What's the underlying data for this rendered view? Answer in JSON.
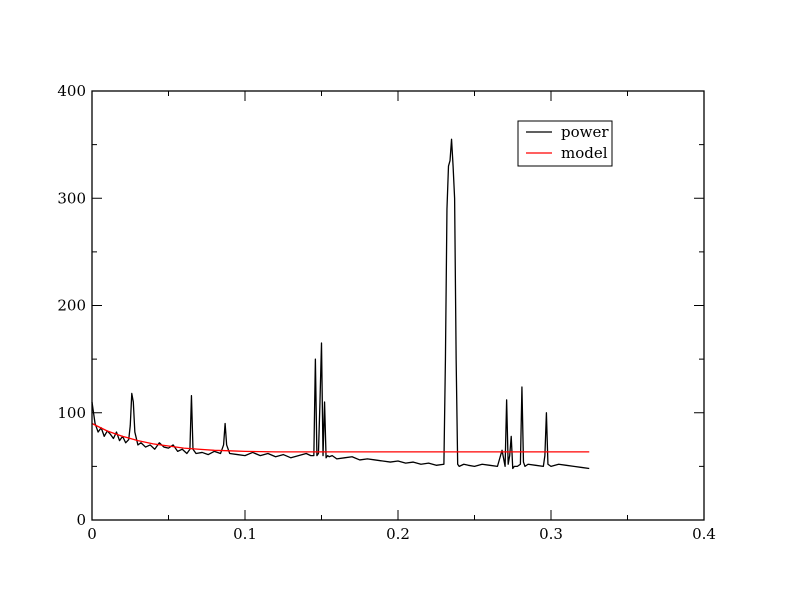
{
  "chart_data": {
    "type": "line",
    "title": "",
    "xlabel": "",
    "ylabel": "",
    "xlim": [
      0,
      0.4
    ],
    "ylim": [
      0,
      400
    ],
    "xticks": [
      0,
      0.1,
      0.2,
      0.3,
      0.4
    ],
    "xtick_labels": [
      "0",
      "0.1",
      "0.2",
      "0.3",
      "0.4"
    ],
    "yticks": [
      0,
      100,
      200,
      300,
      400
    ],
    "ytick_labels": [
      "0",
      "100",
      "200",
      "300",
      "400"
    ],
    "grid": false,
    "legend_position": "top-right",
    "series": [
      {
        "name": "power",
        "color": "#000000",
        "x": [
          0,
          0.002,
          0.004,
          0.006,
          0.008,
          0.01,
          0.012,
          0.014,
          0.016,
          0.018,
          0.02,
          0.022,
          0.024,
          0.025,
          0.026,
          0.027,
          0.028,
          0.03,
          0.032,
          0.035,
          0.038,
          0.041,
          0.044,
          0.047,
          0.05,
          0.053,
          0.056,
          0.059,
          0.062,
          0.064,
          0.065,
          0.066,
          0.068,
          0.072,
          0.076,
          0.08,
          0.084,
          0.086,
          0.087,
          0.088,
          0.09,
          0.095,
          0.1,
          0.105,
          0.11,
          0.115,
          0.12,
          0.125,
          0.13,
          0.135,
          0.14,
          0.143,
          0.145,
          0.146,
          0.147,
          0.148,
          0.149,
          0.15,
          0.151,
          0.152,
          0.153,
          0.154,
          0.155,
          0.157,
          0.16,
          0.165,
          0.17,
          0.175,
          0.18,
          0.185,
          0.19,
          0.195,
          0.2,
          0.205,
          0.21,
          0.215,
          0.22,
          0.225,
          0.23,
          0.231,
          0.232,
          0.233,
          0.234,
          0.235,
          0.236,
          0.237,
          0.238,
          0.239,
          0.24,
          0.243,
          0.246,
          0.25,
          0.255,
          0.26,
          0.265,
          0.268,
          0.27,
          0.271,
          0.272,
          0.273,
          0.274,
          0.275,
          0.276,
          0.278,
          0.28,
          0.281,
          0.282,
          0.283,
          0.285,
          0.29,
          0.295,
          0.296,
          0.297,
          0.298,
          0.3,
          0.305,
          0.31,
          0.315,
          0.32,
          0.325
        ],
        "y": [
          110,
          90,
          82,
          86,
          78,
          83,
          80,
          76,
          82,
          74,
          78,
          72,
          75,
          88,
          118,
          110,
          82,
          70,
          72,
          68,
          70,
          66,
          72,
          68,
          67,
          70,
          64,
          66,
          62,
          66,
          116,
          66,
          62,
          63,
          61,
          64,
          62,
          70,
          90,
          70,
          62,
          61,
          60,
          63,
          60,
          62,
          59,
          61,
          58,
          60,
          62,
          60,
          60,
          150,
          60,
          62,
          110,
          165,
          60,
          110,
          58,
          60,
          59,
          60,
          57,
          58,
          59,
          56,
          57,
          56,
          55,
          54,
          55,
          53,
          54,
          52,
          53,
          51,
          52,
          150,
          290,
          330,
          335,
          355,
          330,
          300,
          150,
          52,
          50,
          52,
          51,
          50,
          52,
          51,
          50,
          65,
          50,
          112,
          52,
          60,
          78,
          48,
          50,
          50,
          52,
          124,
          54,
          50,
          52,
          51,
          50,
          60,
          100,
          52,
          50,
          52,
          51,
          50,
          49,
          48
        ]
      },
      {
        "name": "model",
        "color": "#ff0000",
        "x": [
          0,
          0.01,
          0.02,
          0.03,
          0.04,
          0.05,
          0.06,
          0.07,
          0.08,
          0.09,
          0.1,
          0.12,
          0.15,
          0.2,
          0.25,
          0.3,
          0.325
        ],
        "y": [
          90,
          83,
          78,
          74,
          71,
          69,
          67,
          66,
          65,
          64.5,
          64,
          63.5,
          63.5,
          63.5,
          63.5,
          63.5,
          63.5
        ]
      }
    ]
  }
}
